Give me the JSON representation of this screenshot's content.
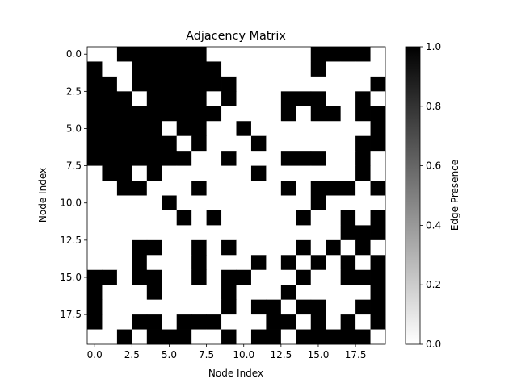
{
  "chart_data": {
    "type": "heatmap",
    "title": "Adjacency Matrix",
    "xlabel": "Node Index",
    "ylabel": "Node Index",
    "n": 20,
    "x_ticks": [
      0,
      2.5,
      5,
      7.5,
      10,
      12.5,
      15,
      17.5
    ],
    "x_tick_labels": [
      "0.0",
      "2.5",
      "5.0",
      "7.5",
      "10.0",
      "12.5",
      "15.0",
      "17.5"
    ],
    "y_ticks": [
      0,
      2.5,
      5,
      7.5,
      10,
      12.5,
      15,
      17.5
    ],
    "y_tick_labels": [
      "0.0",
      "2.5",
      "5.0",
      "7.5",
      "10.0",
      "12.5",
      "15.0",
      "17.5"
    ],
    "colorbar": {
      "label": "Edge Presence",
      "range": [
        0,
        1
      ],
      "ticks": [
        0,
        0.2,
        0.4,
        0.6,
        0.8,
        1
      ],
      "tick_labels": [
        "0.0",
        "0.2",
        "0.4",
        "0.6",
        "0.8",
        "1.0"
      ],
      "colormap": "gray_r"
    },
    "colors": {
      "one": "#000000",
      "zero": "#ffffff"
    },
    "matrix": [
      [
        0,
        0,
        1,
        1,
        1,
        1,
        1,
        1,
        0,
        0,
        0,
        0,
        0,
        0,
        0,
        1,
        1,
        1,
        1,
        0
      ],
      [
        1,
        0,
        0,
        1,
        1,
        1,
        1,
        1,
        1,
        0,
        0,
        0,
        0,
        0,
        0,
        1,
        0,
        0,
        0,
        0
      ],
      [
        1,
        1,
        0,
        1,
        1,
        1,
        1,
        1,
        1,
        1,
        0,
        0,
        0,
        0,
        0,
        0,
        0,
        0,
        0,
        1
      ],
      [
        1,
        1,
        1,
        0,
        1,
        1,
        1,
        1,
        0,
        1,
        0,
        0,
        0,
        1,
        1,
        1,
        0,
        0,
        1,
        0
      ],
      [
        1,
        1,
        1,
        1,
        1,
        1,
        1,
        1,
        1,
        0,
        0,
        0,
        0,
        1,
        0,
        1,
        1,
        0,
        1,
        1
      ],
      [
        1,
        1,
        1,
        1,
        1,
        0,
        1,
        1,
        0,
        0,
        1,
        0,
        0,
        0,
        0,
        0,
        0,
        0,
        0,
        1
      ],
      [
        1,
        1,
        1,
        1,
        1,
        1,
        0,
        1,
        0,
        0,
        0,
        1,
        0,
        0,
        0,
        0,
        0,
        0,
        1,
        1
      ],
      [
        1,
        1,
        1,
        1,
        1,
        1,
        1,
        0,
        0,
        1,
        0,
        0,
        0,
        1,
        1,
        1,
        0,
        0,
        1,
        0
      ],
      [
        0,
        1,
        1,
        0,
        1,
        0,
        0,
        0,
        0,
        0,
        0,
        1,
        0,
        0,
        0,
        0,
        0,
        0,
        1,
        0
      ],
      [
        0,
        0,
        1,
        1,
        0,
        0,
        0,
        1,
        0,
        0,
        0,
        0,
        0,
        1,
        0,
        1,
        1,
        1,
        0,
        1
      ],
      [
        0,
        0,
        0,
        0,
        0,
        1,
        0,
        0,
        0,
        0,
        0,
        0,
        0,
        0,
        0,
        1,
        0,
        0,
        0,
        0
      ],
      [
        0,
        0,
        0,
        0,
        0,
        0,
        1,
        0,
        1,
        0,
        0,
        0,
        0,
        0,
        1,
        0,
        0,
        1,
        0,
        1
      ],
      [
        0,
        0,
        0,
        0,
        0,
        0,
        0,
        0,
        0,
        0,
        0,
        0,
        0,
        0,
        0,
        0,
        0,
        1,
        1,
        1
      ],
      [
        0,
        0,
        0,
        1,
        1,
        0,
        0,
        1,
        0,
        1,
        0,
        0,
        0,
        0,
        1,
        0,
        1,
        0,
        1,
        0
      ],
      [
        0,
        0,
        0,
        1,
        0,
        0,
        0,
        1,
        0,
        0,
        0,
        1,
        0,
        1,
        0,
        1,
        0,
        1,
        0,
        1
      ],
      [
        1,
        1,
        0,
        1,
        1,
        0,
        0,
        1,
        0,
        1,
        1,
        0,
        0,
        0,
        1,
        0,
        0,
        1,
        1,
        1
      ],
      [
        1,
        0,
        0,
        0,
        1,
        0,
        0,
        0,
        0,
        1,
        0,
        0,
        0,
        1,
        0,
        0,
        0,
        0,
        0,
        1
      ],
      [
        1,
        0,
        0,
        0,
        0,
        0,
        0,
        0,
        0,
        1,
        0,
        1,
        1,
        0,
        1,
        1,
        0,
        0,
        1,
        1
      ],
      [
        1,
        0,
        0,
        1,
        1,
        0,
        1,
        1,
        1,
        0,
        0,
        0,
        1,
        1,
        0,
        1,
        0,
        1,
        0,
        1
      ],
      [
        0,
        0,
        1,
        0,
        1,
        1,
        1,
        0,
        0,
        1,
        0,
        1,
        1,
        0,
        1,
        1,
        1,
        1,
        1,
        0
      ]
    ]
  }
}
